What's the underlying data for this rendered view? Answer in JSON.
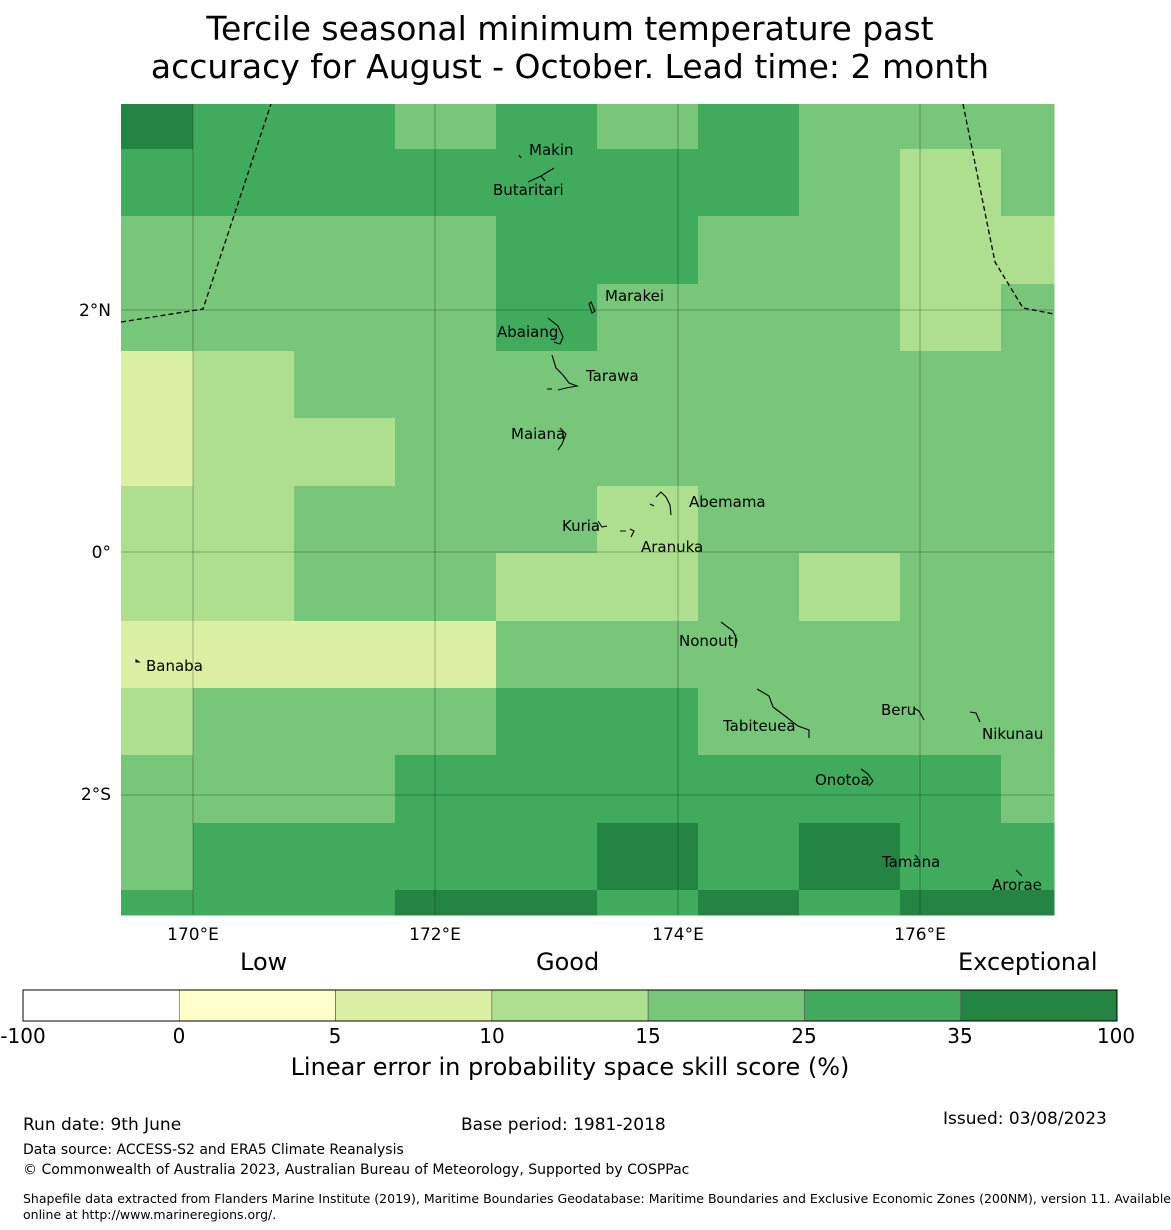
{
  "title": {
    "line1": "Tercile seasonal minimum temperature past",
    "line2": "accuracy for August - October. Lead time: 2 month"
  },
  "map": {
    "lat_labels": [
      "2°N",
      "0°",
      "2°S"
    ],
    "lon_labels": [
      "170°E",
      "172°E",
      "174°E",
      "176°E"
    ],
    "palette": {
      "c5": "#dbf0a3",
      "c10": "#addf8e",
      "c15": "#78c679",
      "c25": "#41ab5d",
      "c35": "#238443"
    },
    "grid_rows": [
      [
        "c35",
        "c25",
        "c25",
        "c15",
        "c25",
        "c15",
        "c25",
        "c15",
        "c15",
        "c15"
      ],
      [
        "c25",
        "c25",
        "c25",
        "c25",
        "c25",
        "c25",
        "c25",
        "c15",
        "c10",
        "c15"
      ],
      [
        "c15",
        "c15",
        "c15",
        "c15",
        "c25",
        "c25",
        "c15",
        "c15",
        "c10",
        "c10"
      ],
      [
        "c15",
        "c15",
        "c15",
        "c15",
        "c25",
        "c15",
        "c15",
        "c15",
        "c10",
        "c15"
      ],
      [
        "c5",
        "c10",
        "c15",
        "c15",
        "c15",
        "c15",
        "c15",
        "c15",
        "c15",
        "c15"
      ],
      [
        "c5",
        "c10",
        "c10",
        "c15",
        "c15",
        "c15",
        "c15",
        "c15",
        "c15",
        "c15"
      ],
      [
        "c10",
        "c10",
        "c15",
        "c15",
        "c15",
        "c10",
        "c15",
        "c15",
        "c15",
        "c15"
      ],
      [
        "c10",
        "c10",
        "c15",
        "c15",
        "c10",
        "c10",
        "c15",
        "c10",
        "c15",
        "c15"
      ],
      [
        "c5",
        "c5",
        "c5",
        "c5",
        "c15",
        "c15",
        "c15",
        "c15",
        "c15",
        "c15"
      ],
      [
        "c10",
        "c15",
        "c15",
        "c15",
        "c25",
        "c25",
        "c15",
        "c15",
        "c15",
        "c15"
      ],
      [
        "c15",
        "c15",
        "c15",
        "c25",
        "c25",
        "c25",
        "c25",
        "c25",
        "c25",
        "c15"
      ],
      [
        "c15",
        "c25",
        "c25",
        "c25",
        "c25",
        "c35",
        "c25",
        "c35",
        "c25",
        "c25"
      ],
      [
        "c25",
        "c25",
        "c25",
        "c35",
        "c35",
        "c25",
        "c35",
        "c25",
        "c35",
        "c35"
      ]
    ],
    "islands": [
      {
        "name": "Makin"
      },
      {
        "name": "Butaritari"
      },
      {
        "name": "Marakei"
      },
      {
        "name": "Abaiang"
      },
      {
        "name": "Tarawa"
      },
      {
        "name": "Maiana"
      },
      {
        "name": "Abemama"
      },
      {
        "name": "Kuria"
      },
      {
        "name": "Aranuka"
      },
      {
        "name": "Nonouti"
      },
      {
        "name": "Banaba"
      },
      {
        "name": "Tabiteuea"
      },
      {
        "name": "Beru"
      },
      {
        "name": "Nikunau"
      },
      {
        "name": "Onotoa"
      },
      {
        "name": "Tamana"
      },
      {
        "name": "Arorae"
      }
    ]
  },
  "colorbar": {
    "categories": [
      "Low",
      "Good",
      "Exceptional"
    ],
    "ticks": [
      "-100",
      "0",
      "5",
      "10",
      "15",
      "25",
      "35",
      "100"
    ],
    "colors": [
      "#ffffff",
      "#ffffcc",
      "#dbf0a3",
      "#addf8e",
      "#78c679",
      "#41ab5d",
      "#238443"
    ],
    "label": "Linear error in probability space skill score (%)"
  },
  "footer": {
    "run_date": "Run date: 9th June",
    "base_period": "Base period: 1981-2018",
    "issued": "Issued: 03/08/2023",
    "data_source": "Data source: ACCESS-S2 and ERA5 Climate Reanalysis",
    "copyright": "© Commonwealth of Australia 2023, Australian Bureau of Meteorology, Supported by COSPPac",
    "shapefile_line1": "Shapefile data extracted from Flanders Marine Institute (2019), Maritime Boundaries Geodatabase: Maritime Boundaries and Exclusive Economic Zones (200NM), version 11. Available",
    "shapefile_line2": "online at http://www.marineregions.org/."
  }
}
